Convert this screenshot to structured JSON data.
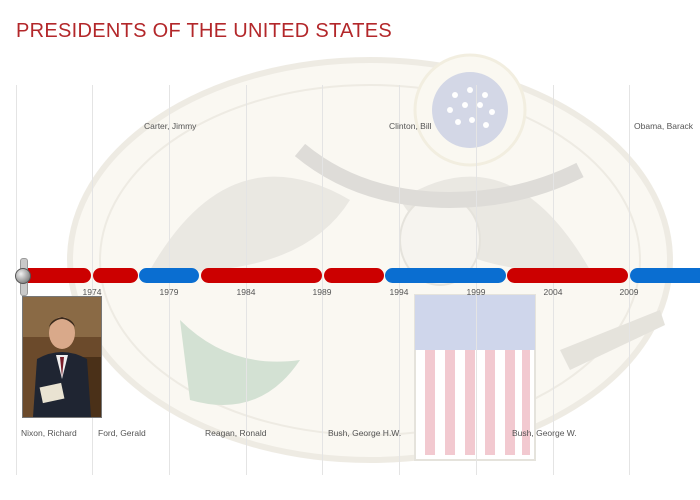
{
  "page": {
    "title": "PRESIDENTS OF THE UNITED STATES"
  },
  "timeline": {
    "years": [
      "1974",
      "1979",
      "1984",
      "1989",
      "1994",
      "1999",
      "2004",
      "2009"
    ],
    "presidents_top": [
      "Carter, Jimmy",
      "Clinton, Bill",
      "Obama, Barack"
    ],
    "presidents_bottom": [
      "Nixon, Richard",
      "Ford, Gerald",
      "Reagan, Ronald",
      "Bush, George H.W.",
      "Bush, George W."
    ],
    "selected": "Nixon, Richard"
  },
  "colors": {
    "title": "#b3272a",
    "republican": "#cc0000",
    "democrat": "#0a6ed1"
  }
}
